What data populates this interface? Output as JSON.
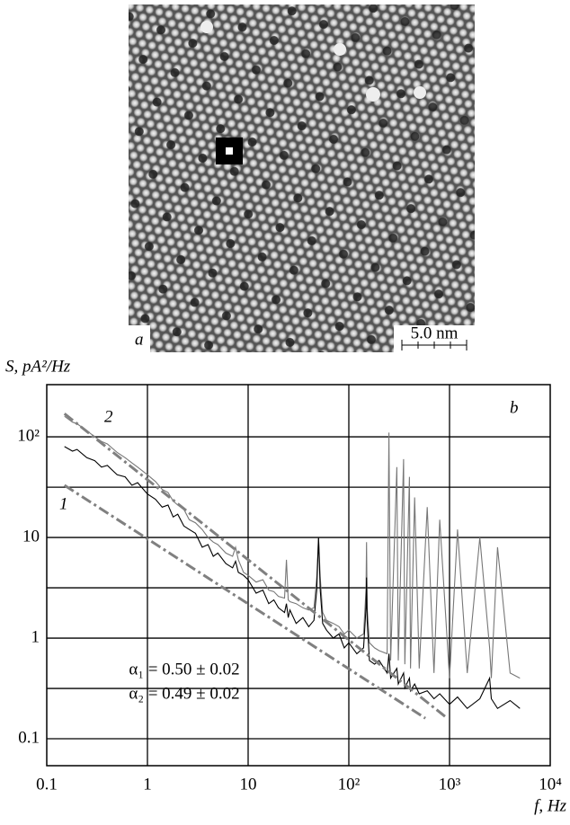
{
  "chart_data": {
    "type": "line",
    "panel_a": {
      "label": "a",
      "scale_bar": "5.0 nm"
    },
    "panel_label": "b",
    "ylabel": "S, pA²/Hz",
    "xlabel": "f, Hz",
    "log_x": true,
    "log_y": true,
    "grid": true,
    "xlim": [
      0.1,
      10000
    ],
    "ylim": [
      0.054,
      330
    ],
    "xticks": [
      0.1,
      1,
      10,
      {
        "value": 100,
        "label": "10²"
      },
      {
        "value": 1000,
        "label": "10³"
      },
      {
        "value": 10000,
        "label": "10⁴"
      }
    ],
    "yticks": [
      0.1,
      1,
      10,
      {
        "value": 100,
        "label": "10²"
      }
    ],
    "yminorticks": [
      0.316,
      3.16,
      31.6
    ],
    "x": [
      0.15,
      0.18,
      0.2,
      0.25,
      0.3,
      0.35,
      0.4,
      0.5,
      0.6,
      0.7,
      0.8,
      1,
      1.2,
      1.4,
      1.6,
      1.8,
      2,
      2.3,
      2.6,
      3,
      3.5,
      4,
      4.5,
      5,
      6,
      7,
      7.5,
      8,
      9,
      10,
      12,
      14,
      16,
      18,
      20,
      23,
      24,
      25,
      26,
      30,
      35,
      40,
      45,
      48,
      50,
      52,
      55,
      60,
      70,
      80,
      90,
      100,
      120,
      140,
      148,
      150,
      152,
      160,
      180,
      200,
      240,
      250,
      260,
      300,
      310,
      350,
      360,
      400,
      410,
      450,
      500,
      600,
      700,
      800,
      1000,
      1200,
      1500,
      2000,
      2500,
      2600,
      3000,
      4000,
      5000
    ],
    "series": [
      {
        "name": "1",
        "color": "#000000",
        "values": [
          80,
          72,
          75,
          62,
          58,
          50,
          52,
          42,
          40,
          33,
          35,
          27,
          24,
          20,
          21,
          16,
          17,
          13,
          12,
          11,
          8,
          8.5,
          6.5,
          7,
          5.5,
          5,
          5.8,
          4.5,
          4.2,
          3.8,
          2.8,
          3.0,
          2.2,
          2.4,
          2.0,
          1.8,
          2.2,
          1.6,
          1.9,
          1.4,
          1.6,
          1.3,
          1.5,
          3,
          10,
          3,
          1.4,
          1.2,
          1.0,
          1.1,
          0.8,
          0.9,
          0.7,
          0.8,
          2,
          4,
          1.5,
          0.6,
          0.55,
          0.6,
          0.45,
          0.7,
          0.4,
          0.5,
          0.35,
          0.45,
          0.32,
          0.4,
          0.3,
          0.35,
          0.28,
          0.3,
          0.25,
          0.28,
          0.22,
          0.26,
          0.2,
          0.25,
          0.4,
          0.25,
          0.2,
          0.24,
          0.2
        ]
      },
      {
        "name": "2",
        "color": "#777777",
        "values": [
          160,
          140,
          135,
          115,
          100,
          90,
          85,
          70,
          62,
          55,
          50,
          42,
          36,
          30,
          28,
          23,
          21,
          19,
          15,
          14,
          12,
          10,
          9,
          8.5,
          7,
          6.5,
          8,
          6,
          4.5,
          4.2,
          3.6,
          3.8,
          3.0,
          2.9,
          2.6,
          2.5,
          6,
          2.4,
          2.3,
          2.2,
          2.0,
          1.9,
          2,
          4,
          10,
          4,
          1.8,
          1.5,
          1.4,
          1.3,
          1.1,
          1.2,
          1.0,
          1.1,
          3,
          9,
          2,
          0.9,
          0.8,
          0.75,
          0.7,
          110,
          0.6,
          50,
          0.6,
          60,
          0.55,
          40,
          0.5,
          25,
          0.5,
          20,
          0.45,
          15,
          0.4,
          12,
          0.45,
          10,
          0.8,
          0.4,
          8,
          0.45,
          0.4
        ]
      }
    ],
    "fits": [
      {
        "color": "#808080",
        "x": [
          0.15,
          575
        ],
        "values": [
          33,
          0.16
        ]
      },
      {
        "color": "#808080",
        "x": [
          0.15,
          950
        ],
        "values": [
          170,
          0.16
        ]
      }
    ],
    "annotations": [
      "α₁ = 0.50 ± 0.02",
      "α₂ = 0.49 ± 0.02"
    ]
  }
}
